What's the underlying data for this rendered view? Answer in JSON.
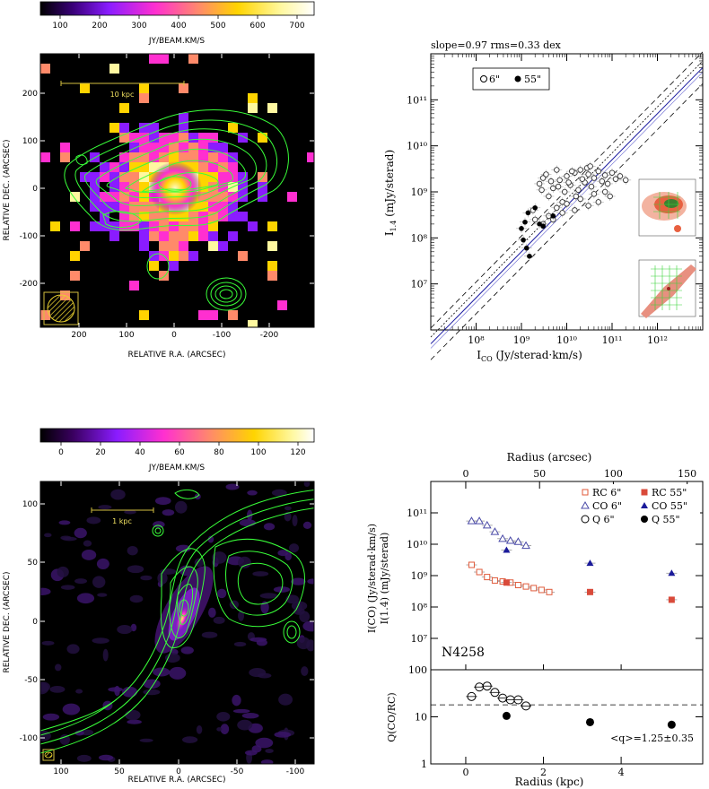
{
  "panels": {
    "top_left": {
      "colorbar": {
        "ticks": [
          "100",
          "200",
          "300",
          "400",
          "500",
          "600",
          "700"
        ],
        "label": "JY/BEAM.KM/S",
        "colors": [
          "#000000",
          "#3a007a",
          "#8a1cff",
          "#ff2fd0",
          "#ff8a6a",
          "#ffd400",
          "#fff8a0",
          "#ffffff"
        ]
      },
      "xlabel": "RELATIVE R.A. (ARCSEC)",
      "ylabel": "RELATIVE DEC. (ARCSEC)",
      "xticks": [
        "200",
        "100",
        "0",
        "-100",
        "-200"
      ],
      "yticks": [
        "200",
        "100",
        "0",
        "-100",
        "-200"
      ],
      "scale_bar": "10 kpc",
      "contour_color": "#39ff39"
    },
    "top_right": {
      "header": "slope=0.97 rms=0.33 dex",
      "legend": [
        {
          "label": "6\"",
          "marker": "open-circle"
        },
        {
          "label": "55\"",
          "marker": "filled-circle"
        }
      ],
      "xlabel_base": "I",
      "xlabel_sub": "CO",
      "xlabel_rest": " (Jy/sterad·km/s)",
      "ylabel_base": "I",
      "ylabel_sub": "1.4",
      "ylabel_rest": " (mJy/sterad)",
      "xticks": [
        "10⁸",
        "10⁹",
        "10¹⁰",
        "10¹¹",
        "10¹²"
      ],
      "yticks": [
        "10⁷",
        "10⁸",
        "10⁹",
        "10¹⁰",
        "10¹¹"
      ]
    },
    "bottom_left": {
      "colorbar": {
        "ticks": [
          "0",
          "20",
          "40",
          "60",
          "80",
          "100",
          "120"
        ],
        "label": "JY/BEAM.KM/S"
      },
      "xlabel": "RELATIVE R.A. (ARCSEC)",
      "ylabel": "RELATIVE DEC. (ARCSEC)",
      "xticks": [
        "100",
        "50",
        "0",
        "-50",
        "-100"
      ],
      "yticks": [
        "100",
        "50",
        "0",
        "-50",
        "-100"
      ],
      "scale_bar": "1 kpc"
    },
    "bottom_right": {
      "top_axis_label": "Radius (arcsec)",
      "top_ticks": [
        "0",
        "50",
        "100",
        "150"
      ],
      "xlabel": "Radius (kpc)",
      "xticks": [
        "0",
        "2",
        "4"
      ],
      "upper_yticks": [
        "10⁷",
        "10⁸",
        "10⁹",
        "10¹⁰",
        "10¹¹"
      ],
      "upper_ylabel_1": "I(CO) (Jy/sterad·km/s)",
      "upper_ylabel_2": "I(1.4) (mJy/sterad)",
      "galaxy": "N4258",
      "legend": [
        {
          "label": "RC 6\"",
          "marker": "open-square",
          "color": "#e05a3a"
        },
        {
          "label": "RC 55\"",
          "marker": "filled-square",
          "color": "#d94a3a"
        },
        {
          "label": "CO 6\"",
          "marker": "open-triangle",
          "color": "#4a4aa8"
        },
        {
          "label": "CO 55\"",
          "marker": "filled-triangle",
          "color": "#1a1a9a"
        },
        {
          "label": "Q 6\"",
          "marker": "open-circle",
          "color": "#000000"
        },
        {
          "label": "Q 55\"",
          "marker": "filled-circle",
          "color": "#000000"
        }
      ],
      "lower_yticks": [
        "1",
        "10",
        "100"
      ],
      "lower_ylabel": "Q(CO/RC)",
      "q_text": "<q>=1.25±0.35"
    }
  },
  "chart_data": [
    {
      "type": "scatter",
      "title": "slope=0.97 rms=0.33 dex",
      "xlabel": "I_CO (Jy/sterad·km/s)",
      "ylabel": "I_1.4 (mJy/sterad)",
      "xscale": "log",
      "yscale": "log",
      "xlim": [
        10000000.0,
        10000000000000.0
      ],
      "ylim": [
        1000000.0,
        1000000000000.0
      ],
      "legend_position": "top-left",
      "series": [
        {
          "name": "6\"",
          "marker": "open-circle",
          "points": [
            [
              2500000000.0,
              1500000000.0
            ],
            [
              3000000000.0,
              2000000000.0
            ],
            [
              4000000000.0,
              800000000.0
            ],
            [
              5000000000.0,
              1200000000.0
            ],
            [
              6000000000.0,
              3000000000.0
            ],
            [
              7000000000.0,
              1800000000.0
            ],
            [
              8000000000.0,
              600000000.0
            ],
            [
              9000000000.0,
              1000000000.0
            ],
            [
              10000000000.0,
              2200000000.0
            ],
            [
              12000000000.0,
              1400000000.0
            ],
            [
              15000000000.0,
              2600000000.0
            ],
            [
              18000000000.0,
              1100000000.0
            ],
            [
              20000000000.0,
              3000000000.0
            ],
            [
              25000000000.0,
              1600000000.0
            ],
            [
              30000000000.0,
              2400000000.0
            ],
            [
              35000000000.0,
              1300000000.0
            ],
            [
              40000000000.0,
              2000000000.0
            ],
            [
              50000000000.0,
              2800000000.0
            ],
            [
              60000000000.0,
              1700000000.0
            ],
            [
              70000000000.0,
              2300000000.0
            ],
            [
              80000000000.0,
              1500000000.0
            ],
            [
              100000000000.0,
              2600000000.0
            ],
            [
              120000000000.0,
              1900000000.0
            ],
            [
              150000000000.0,
              2200000000.0
            ],
            [
              200000000000.0,
              1800000000.0
            ],
            [
              30000000000.0,
              500000000.0
            ],
            [
              20000000000.0,
              700000000.0
            ],
            [
              15000000000.0,
              400000000.0
            ],
            [
              10000000000.0,
              550000000.0
            ],
            [
              8000000000.0,
              350000000.0
            ],
            [
              6000000000.0,
              450000000.0
            ],
            [
              5000000000.0,
              250000000.0
            ],
            [
              4000000000.0,
              300000000.0
            ],
            [
              3000000000.0,
              200000000.0
            ],
            [
              2000000000.0,
              250000000.0
            ],
            [
              1800000000.0,
              400000000.0
            ],
            [
              40000000000.0,
              900000000.0
            ],
            [
              50000000000.0,
              600000000.0
            ],
            [
              70000000000.0,
              1000000000.0
            ],
            [
              90000000000.0,
              800000000.0
            ],
            [
              11000000000.0,
              1600000000.0
            ],
            [
              22000000000.0,
              1900000000.0
            ],
            [
              28000000000.0,
              3300000000.0
            ],
            [
              33000000000.0,
              3600000000.0
            ],
            [
              6500000000.0,
              1300000000.0
            ],
            [
              4500000000.0,
              1700000000.0
            ],
            [
              3500000000.0,
              2400000000.0
            ],
            [
              2800000000.0,
              1100000000.0
            ],
            [
              16000000000.0,
              800000000.0
            ],
            [
              13000000000.0,
              2800000000.0
            ]
          ]
        },
        {
          "name": "55\"",
          "marker": "filled-circle",
          "points": [
            [
              1000000000.0,
              160000000.0
            ],
            [
              1100000000.0,
              90000000.0
            ],
            [
              1300000000.0,
              60000000.0
            ],
            [
              1500000000.0,
              40000000.0
            ],
            [
              2000000000.0,
              450000000.0
            ],
            [
              1400000000.0,
              350000000.0
            ],
            [
              2500000000.0,
              200000000.0
            ],
            [
              3000000000.0,
              180000000.0
            ],
            [
              1200000000.0,
              220000000.0
            ],
            [
              5000000000.0,
              300000000.0
            ]
          ]
        }
      ]
    },
    {
      "type": "scatter",
      "xlabel": "Radius (kpc)",
      "ylabel": "I_CO (Jy/sterad·km/s) / I_1.4 (mJy/sterad)",
      "top_xlabel": "Radius (arcsec)",
      "yscale": "log",
      "xlim": [
        -0.9,
        6.1
      ],
      "ylim": [
        1000000.0,
        1000000000000.0
      ],
      "legend_position": "top-right",
      "series": [
        {
          "name": "RC 6\"",
          "marker": "open-square",
          "x": [
            0.15,
            0.35,
            0.55,
            0.75,
            0.95,
            1.15,
            1.35,
            1.55,
            1.75,
            1.95,
            2.15
          ],
          "y": [
            2200000000.0,
            1300000000.0,
            900000000.0,
            700000000.0,
            650000000.0,
            600000000.0,
            500000000.0,
            450000000.0,
            400000000.0,
            350000000.0,
            300000000.0
          ]
        },
        {
          "name": "RC 55\"",
          "marker": "filled-square",
          "x": [
            1.05,
            3.2,
            5.3
          ],
          "y": [
            600000000.0,
            300000000.0,
            170000000.0
          ]
        },
        {
          "name": "CO 6\"",
          "marker": "open-triangle",
          "x": [
            0.15,
            0.35,
            0.55,
            0.75,
            0.95,
            1.15,
            1.35,
            1.55
          ],
          "y": [
            55000000000.0,
            55000000000.0,
            40000000000.0,
            25000000000.0,
            15000000000.0,
            13000000000.0,
            12000000000.0,
            9000000000.0
          ]
        },
        {
          "name": "CO 55\"",
          "marker": "filled-triangle",
          "x": [
            1.05,
            3.2,
            5.3
          ],
          "y": [
            6500000000.0,
            2500000000.0,
            1200000000.0
          ]
        }
      ]
    },
    {
      "type": "scatter",
      "xlabel": "Radius (kpc)",
      "ylabel": "Q_CO/RC",
      "yscale": "log",
      "xlim": [
        -0.9,
        6.1
      ],
      "ylim": [
        1,
        100
      ],
      "reference_line": 18,
      "annotation": "<q>=1.25±0.35",
      "series": [
        {
          "name": "Q 6\"",
          "marker": "open-circle",
          "x": [
            0.15,
            0.35,
            0.55,
            0.75,
            0.95,
            1.15,
            1.35,
            1.55
          ],
          "y": [
            27,
            43,
            45,
            33,
            25,
            23,
            23,
            17
          ]
        },
        {
          "name": "Q 55\"",
          "marker": "filled-circle",
          "x": [
            1.05,
            3.2,
            5.3
          ],
          "y": [
            10.5,
            7.7,
            6.8
          ]
        }
      ]
    }
  ]
}
